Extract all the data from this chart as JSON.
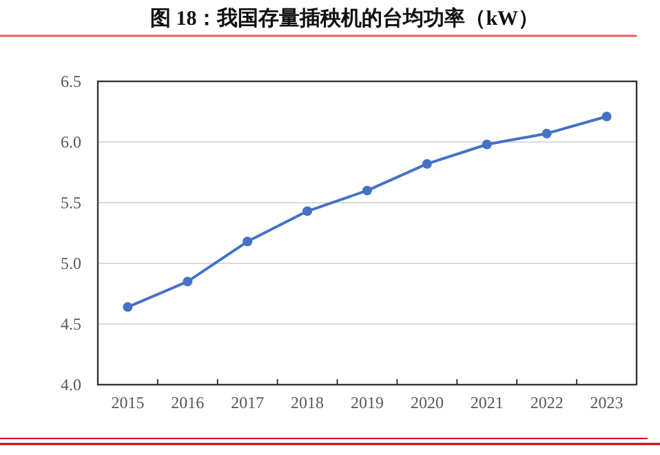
{
  "chart_data": {
    "type": "line",
    "title": "图 18：我国存量插秧机的台均功率（kW）",
    "categories": [
      "2015",
      "2016",
      "2017",
      "2018",
      "2019",
      "2020",
      "2021",
      "2022",
      "2023"
    ],
    "series": [
      {
        "color": "#4472c4",
        "values": [
          4.64,
          4.85,
          5.18,
          5.43,
          5.6,
          5.82,
          5.98,
          6.07,
          6.21
        ]
      }
    ],
    "ylim": [
      4.0,
      6.5
    ],
    "yticks": [
      {
        "value": 4.0,
        "label": "4.0"
      },
      {
        "value": 4.5,
        "label": "4.5"
      },
      {
        "value": 5.0,
        "label": "5.0"
      },
      {
        "value": 5.5,
        "label": "5.5"
      },
      {
        "value": 6.0,
        "label": "6.0"
      },
      {
        "value": 6.5,
        "label": "6.5"
      }
    ],
    "grid": "y",
    "marker": "circle",
    "line_style": "solid"
  }
}
